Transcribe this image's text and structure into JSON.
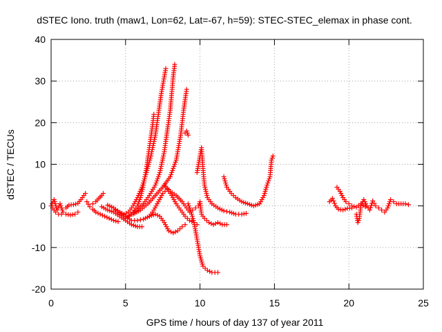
{
  "chart_data": {
    "type": "scatter",
    "title": "dSTEC Iono. truth (maw1, Lon=62, Lat=-67, h=59): STEC-STEC_elemax in phase cont.",
    "xlabel": "GPS time / hours of day 137 of year 2011",
    "ylabel": "dSTEC  / TECUs",
    "xlim": [
      0,
      25
    ],
    "ylim": [
      -20,
      40
    ],
    "xticks": [
      0,
      5,
      10,
      15,
      20,
      25
    ],
    "yticks": [
      -20,
      -10,
      0,
      10,
      20,
      30,
      40
    ],
    "xtick_labels": [
      "0",
      "5",
      "10",
      "15",
      "20",
      "25"
    ],
    "ytick_labels": [
      "-20",
      "-10",
      "0",
      "10",
      "20",
      "30",
      "40"
    ],
    "grid": true,
    "marker": "plus",
    "color": "#ff0000",
    "series": [
      {
        "points": [
          [
            0.0,
            0.0
          ],
          [
            0.2,
            1.5
          ],
          [
            0.4,
            -1.0
          ],
          [
            0.6,
            0.5
          ],
          [
            0.8,
            -1.5
          ],
          [
            1.0,
            -2.0
          ],
          [
            1.3,
            -2.2
          ],
          [
            1.6,
            -2.0
          ],
          [
            1.8,
            -1.5
          ]
        ]
      },
      {
        "points": [
          [
            0.1,
            -0.5
          ],
          [
            0.3,
            -1.5
          ],
          [
            0.5,
            -2.0
          ],
          [
            0.7,
            -2.0
          ]
        ]
      },
      {
        "points": [
          [
            1.0,
            -0.5
          ],
          [
            1.2,
            0.2
          ],
          [
            1.5,
            0.3
          ],
          [
            1.8,
            0.6
          ],
          [
            2.0,
            1.5
          ],
          [
            2.2,
            2.5
          ],
          [
            2.3,
            3.0
          ]
        ]
      },
      {
        "points": [
          [
            2.4,
            1.0
          ],
          [
            2.6,
            -0.2
          ],
          [
            2.8,
            -0.8
          ],
          [
            3.0,
            -1.5
          ],
          [
            3.3,
            -2.0
          ],
          [
            3.6,
            -2.5
          ],
          [
            3.9,
            -3.0
          ],
          [
            4.2,
            -3.5
          ],
          [
            4.5,
            -3.8
          ]
        ]
      },
      {
        "points": [
          [
            2.8,
            0.5
          ],
          [
            3.0,
            1.0
          ],
          [
            3.2,
            1.8
          ],
          [
            3.4,
            2.5
          ],
          [
            3.5,
            3.0
          ]
        ]
      },
      {
        "points": [
          [
            3.4,
            -0.2
          ],
          [
            3.8,
            -1.0
          ],
          [
            4.2,
            -1.5
          ],
          [
            4.6,
            -2.5
          ],
          [
            5.0,
            -3.5
          ],
          [
            5.4,
            -4.5
          ],
          [
            5.8,
            -5.0
          ],
          [
            6.1,
            -5.0
          ]
        ]
      },
      {
        "points": [
          [
            3.8,
            0.2
          ],
          [
            4.2,
            -0.5
          ],
          [
            4.6,
            -1.5
          ],
          [
            5.0,
            -2.5
          ],
          [
            5.4,
            -3.5
          ],
          [
            5.8,
            -3.5
          ],
          [
            6.2,
            -3.2
          ],
          [
            6.6,
            -2.5
          ],
          [
            7.0,
            -2.0
          ],
          [
            7.3,
            -2.5
          ],
          [
            7.6,
            -4.0
          ],
          [
            7.9,
            -6.0
          ],
          [
            8.2,
            -6.5
          ],
          [
            8.5,
            -6.0
          ],
          [
            8.8,
            -5.0
          ],
          [
            9.0,
            -4.5
          ]
        ]
      },
      {
        "points": [
          [
            4.3,
            -1.0
          ],
          [
            4.6,
            -2.0
          ],
          [
            4.9,
            -2.5
          ],
          [
            5.2,
            -2.5
          ],
          [
            5.5,
            -1.5
          ],
          [
            5.8,
            0.0
          ],
          [
            6.0,
            2.0
          ],
          [
            6.2,
            5.0
          ],
          [
            6.4,
            9.0
          ],
          [
            6.6,
            14.0
          ],
          [
            6.8,
            19.0
          ],
          [
            6.9,
            22.0
          ]
        ]
      },
      {
        "points": [
          [
            4.5,
            -1.5
          ],
          [
            4.9,
            -2.0
          ],
          [
            5.2,
            -1.5
          ],
          [
            5.5,
            0.0
          ],
          [
            5.8,
            2.0
          ],
          [
            6.1,
            4.5
          ],
          [
            6.4,
            8.0
          ],
          [
            6.7,
            12.0
          ],
          [
            7.0,
            17.0
          ],
          [
            7.2,
            22.0
          ],
          [
            7.4,
            27.0
          ],
          [
            7.6,
            31.0
          ],
          [
            7.7,
            33.0
          ]
        ]
      },
      {
        "points": [
          [
            5.0,
            -3.0
          ],
          [
            5.4,
            -2.0
          ],
          [
            5.8,
            -1.0
          ],
          [
            6.2,
            0.5
          ],
          [
            6.6,
            2.5
          ],
          [
            7.0,
            5.0
          ],
          [
            7.3,
            8.0
          ],
          [
            7.6,
            13.0
          ],
          [
            7.8,
            18.0
          ],
          [
            8.0,
            23.0
          ],
          [
            8.1,
            27.0
          ],
          [
            8.2,
            31.0
          ],
          [
            8.3,
            34.0
          ]
        ]
      },
      {
        "points": [
          [
            5.5,
            -2.0
          ],
          [
            6.0,
            -1.0
          ],
          [
            6.5,
            0.5
          ],
          [
            7.0,
            2.5
          ],
          [
            7.5,
            4.5
          ],
          [
            8.0,
            7.0
          ],
          [
            8.4,
            11.0
          ],
          [
            8.7,
            17.0
          ],
          [
            8.9,
            23.0
          ],
          [
            9.1,
            28.0
          ]
        ]
      },
      {
        "points": [
          [
            9.0,
            17.5
          ],
          [
            9.1,
            18.0
          ],
          [
            9.2,
            17.0
          ]
        ]
      },
      {
        "points": [
          [
            7.6,
            5.0
          ],
          [
            8.0,
            3.5
          ],
          [
            8.4,
            2.5
          ],
          [
            8.8,
            1.0
          ],
          [
            9.1,
            -0.5
          ],
          [
            9.3,
            -1.5
          ],
          [
            9.5,
            -1.0
          ],
          [
            9.7,
            -0.5
          ],
          [
            9.9,
            0.0
          ],
          [
            10.0,
            1.0
          ],
          [
            10.1,
            -2.0
          ],
          [
            10.3,
            -3.0
          ],
          [
            10.6,
            -4.0
          ],
          [
            10.9,
            -4.5
          ],
          [
            11.2,
            -4.0
          ],
          [
            11.5,
            -4.5
          ],
          [
            11.8,
            -4.5
          ]
        ]
      },
      {
        "points": [
          [
            6.6,
            -2.5
          ],
          [
            6.9,
            -1.0
          ],
          [
            7.2,
            1.0
          ],
          [
            7.5,
            3.0
          ],
          [
            7.8,
            4.0
          ],
          [
            8.1,
            2.5
          ],
          [
            8.4,
            0.5
          ],
          [
            8.7,
            -1.0
          ],
          [
            9.0,
            -2.5
          ],
          [
            9.3,
            -3.5
          ],
          [
            9.6,
            -4.0
          ],
          [
            9.8,
            -4.5
          ]
        ]
      },
      {
        "points": [
          [
            9.2,
            0.5
          ],
          [
            9.4,
            -1.5
          ],
          [
            9.6,
            -4.0
          ],
          [
            9.8,
            -8.0
          ],
          [
            10.0,
            -12.0
          ],
          [
            10.2,
            -14.5
          ],
          [
            10.5,
            -15.5
          ],
          [
            10.8,
            -16.0
          ],
          [
            11.0,
            -16.0
          ],
          [
            11.2,
            -16.0
          ]
        ]
      },
      {
        "points": [
          [
            9.8,
            8.0
          ],
          [
            9.9,
            10.0
          ],
          [
            10.0,
            12.0
          ],
          [
            10.1,
            14.0
          ],
          [
            10.2,
            9.0
          ],
          [
            10.3,
            5.0
          ],
          [
            10.5,
            2.0
          ],
          [
            10.8,
            0.5
          ],
          [
            11.2,
            -0.5
          ],
          [
            11.6,
            -1.2
          ],
          [
            12.0,
            -1.5
          ],
          [
            12.4,
            -2.0
          ],
          [
            12.8,
            -2.0
          ],
          [
            13.1,
            -1.8
          ]
        ]
      },
      {
        "points": [
          [
            11.6,
            7.0
          ],
          [
            11.8,
            4.5
          ],
          [
            12.1,
            3.0
          ],
          [
            12.4,
            2.0
          ],
          [
            12.8,
            1.0
          ],
          [
            13.2,
            0.5
          ],
          [
            13.6,
            0.0
          ],
          [
            14.0,
            0.5
          ],
          [
            14.3,
            2.5
          ],
          [
            14.5,
            5.0
          ],
          [
            14.7,
            7.0
          ],
          [
            14.8,
            11.0
          ],
          [
            14.9,
            12.0
          ]
        ]
      },
      {
        "points": [
          [
            18.7,
            1.0
          ],
          [
            18.9,
            1.8
          ],
          [
            19.1,
            0.0
          ],
          [
            19.3,
            -0.8
          ],
          [
            19.6,
            -1.0
          ],
          [
            19.9,
            -0.6
          ],
          [
            20.2,
            -0.5
          ]
        ]
      },
      {
        "points": [
          [
            19.2,
            4.5
          ],
          [
            19.4,
            3.5
          ],
          [
            19.6,
            2.0
          ],
          [
            19.8,
            1.0
          ],
          [
            20.0,
            0.5
          ],
          [
            20.2,
            0.0
          ],
          [
            20.5,
            -0.3
          ],
          [
            20.8,
            0.5
          ],
          [
            21.1,
            -0.2
          ]
        ]
      },
      {
        "points": [
          [
            20.5,
            -2.0
          ],
          [
            20.6,
            -4.0
          ],
          [
            20.7,
            -3.0
          ],
          [
            20.8,
            0.0
          ],
          [
            21.0,
            1.5
          ],
          [
            21.2,
            0.0
          ],
          [
            21.4,
            -1.0
          ],
          [
            21.6,
            1.2
          ],
          [
            21.8,
            0.0
          ],
          [
            22.0,
            -0.5
          ],
          [
            22.2,
            -1.0
          ],
          [
            22.4,
            -1.5
          ],
          [
            22.6,
            -0.5
          ],
          [
            22.8,
            1.5
          ],
          [
            23.0,
            1.0
          ],
          [
            23.2,
            0.5
          ],
          [
            23.5,
            0.5
          ],
          [
            23.8,
            0.5
          ],
          [
            24.0,
            0.3
          ]
        ]
      }
    ]
  }
}
